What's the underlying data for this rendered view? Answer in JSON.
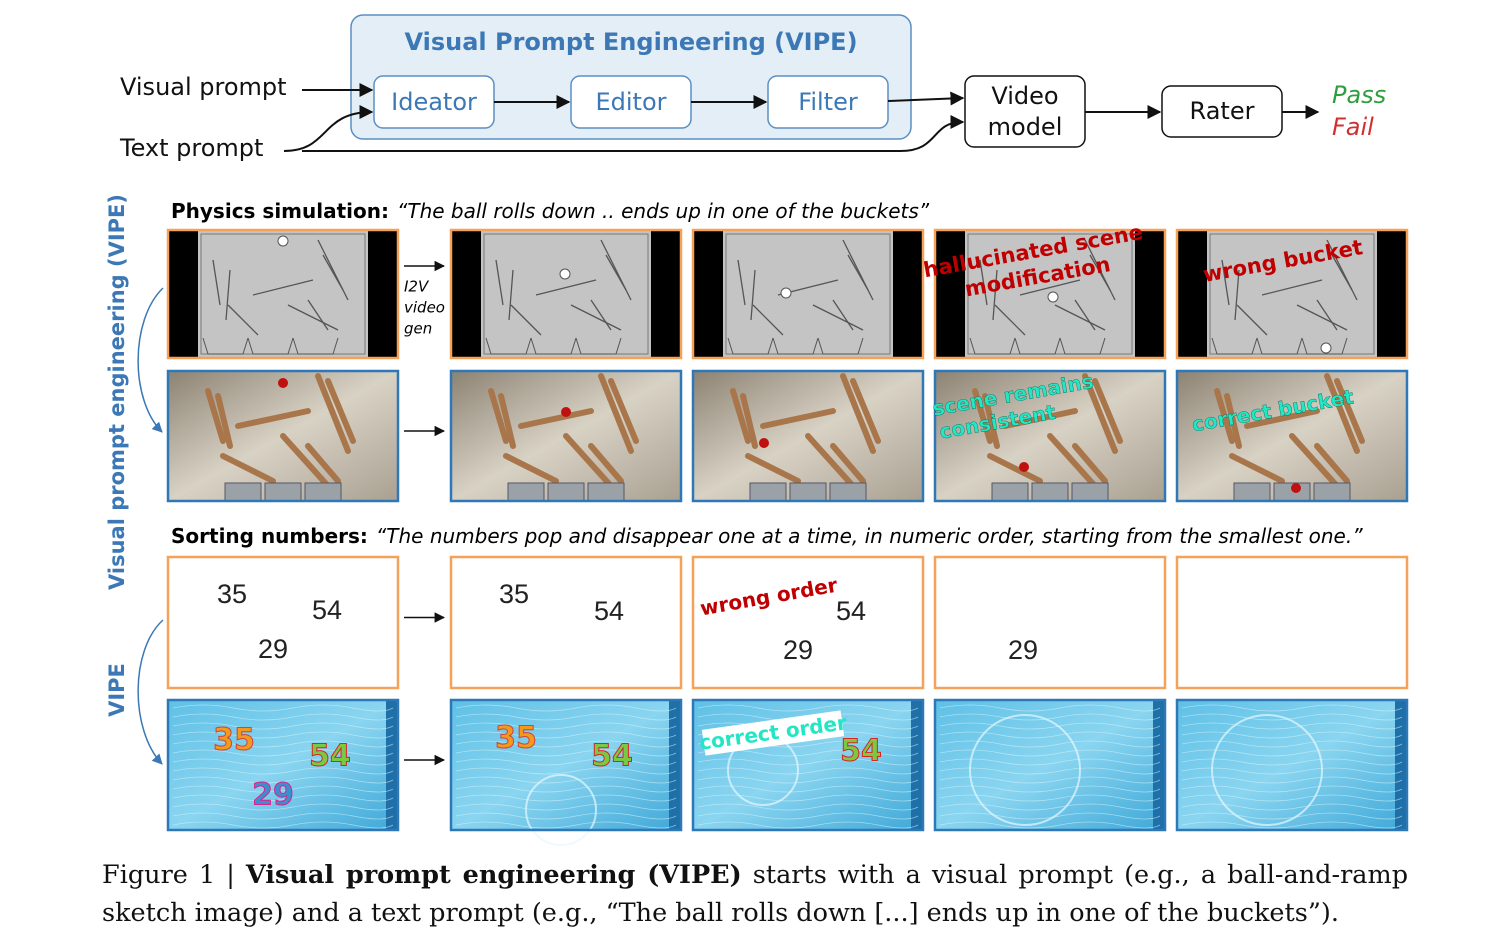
{
  "pipeline": {
    "title": "Visual Prompt Engineering (VIPE)",
    "inputs": [
      "Visual prompt",
      "Text prompt"
    ],
    "stages": [
      "Ideator",
      "Editor",
      "Filter"
    ],
    "video_model": [
      "Video",
      "model"
    ],
    "rater": "Rater",
    "outcomes": [
      "Pass",
      "Fail"
    ]
  },
  "side_labels": [
    "Visual prompt engineering (VIPE)",
    "VIPE"
  ],
  "physics": {
    "heading": "Physics simulation:",
    "prompt": "“The ball rolls down .. ends up in one of the buckets”",
    "i2v": [
      "I2V",
      "video",
      "gen"
    ],
    "annotations": {
      "hallucinated": [
        "hallucinated scene",
        "modification"
      ],
      "wrong": "wrong bucket",
      "consistent": [
        "scene remains",
        "consistent"
      ],
      "correct": "correct bucket"
    }
  },
  "sorting": {
    "heading": "Sorting numbers:",
    "prompt": "“The numbers pop and disappear one at a time, in numeric order, starting from the smallest one.”",
    "numbers": [
      "35",
      "54",
      "29"
    ],
    "annotations": {
      "wrong": "wrong order",
      "correct": "correct order"
    }
  },
  "caption": {
    "label": "Figure 1 |",
    "bold": "Visual prompt engineering (VIPE)",
    "text": "starts with a visual prompt (e.g., a ball-and-ramp sketch image) and a text prompt (e.g., “The ball rolls down [...] ends up in one of the buckets”)."
  }
}
